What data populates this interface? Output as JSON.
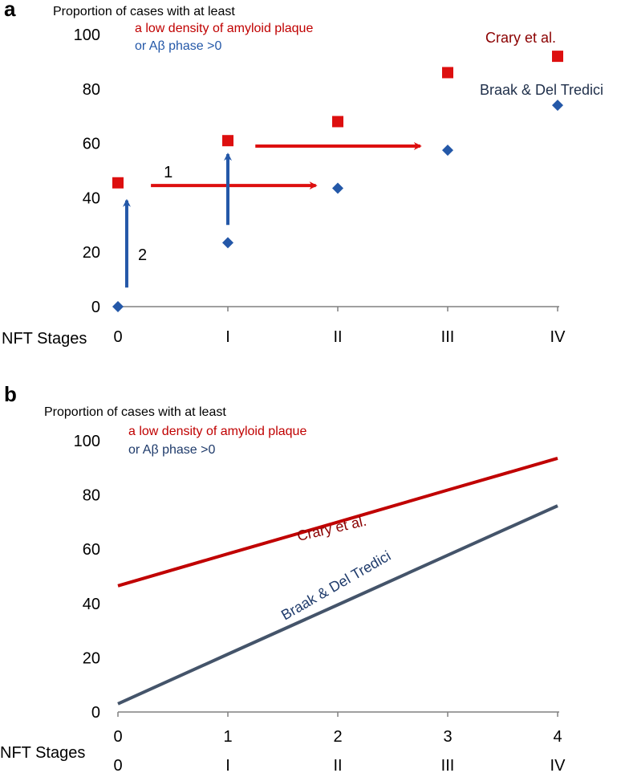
{
  "colors": {
    "red": "#dd0f0f",
    "red_text": "#c00000",
    "dark_red_text": "#8b0000",
    "blue": "#2458a8",
    "slate": "#44546a",
    "axis": "#808080"
  },
  "chart_data": [
    {
      "panel": "a",
      "type": "scatter",
      "title_line1": "Proportion of cases with at least",
      "title_line2": "a low density of amyloid plaque",
      "title_line3": "or Aβ phase >0",
      "xlabel": "NFT Stages",
      "categories": [
        "0",
        "I",
        "II",
        "III",
        "IV"
      ],
      "ylim": [
        0,
        100
      ],
      "yticks": [
        "0",
        "20",
        "40",
        "60",
        "80",
        "100"
      ],
      "series": [
        {
          "name": "Crary et al.",
          "marker": "square",
          "color": "#dd0f0f",
          "values": [
            45.5,
            61,
            68,
            86,
            92
          ]
        },
        {
          "name": "Braak & Del Tredici",
          "marker": "diamond",
          "color": "#2458a8",
          "values": [
            0,
            23.5,
            43.5,
            57.5,
            74
          ]
        }
      ],
      "annotations": [
        {
          "label": "1",
          "kind": "horizontal-arrow",
          "color": "#dd0f0f",
          "from": [
            0.3,
            44.5
          ],
          "to": [
            1.8,
            44.5
          ]
        },
        {
          "label": "",
          "kind": "horizontal-arrow",
          "color": "#dd0f0f",
          "from": [
            1.25,
            59
          ],
          "to": [
            2.75,
            59
          ]
        },
        {
          "label": "2",
          "kind": "vertical-arrow",
          "color": "#2458a8",
          "from": [
            0.08,
            7
          ],
          "to": [
            0.08,
            39
          ]
        },
        {
          "label": "",
          "kind": "vertical-arrow",
          "color": "#2458a8",
          "from": [
            1,
            30
          ],
          "to": [
            1,
            56
          ]
        }
      ]
    },
    {
      "panel": "b",
      "type": "line",
      "title_line1": "Proportion of cases with at least",
      "title_line2": "a low density of amyloid plaque",
      "title_line3": "or Aβ phase >0",
      "xlabel": "NFT Stages",
      "x": [
        0,
        1,
        2,
        3,
        4
      ],
      "x_tick_labels": [
        "0",
        "1",
        "2",
        "3",
        "4"
      ],
      "stage_labels": [
        "0",
        "I",
        "II",
        "III",
        "IV"
      ],
      "ylim": [
        0,
        100
      ],
      "yticks": [
        "0",
        "20",
        "40",
        "60",
        "80",
        "100"
      ],
      "series": [
        {
          "name": "Crary et al.",
          "color": "#c00000",
          "values": [
            46.5,
            58.3,
            70,
            81.8,
            93.5
          ]
        },
        {
          "name": "Braak & Del Tredici",
          "color": "#44546a",
          "values": [
            3,
            21.3,
            39.5,
            57.8,
            76
          ]
        }
      ]
    }
  ]
}
